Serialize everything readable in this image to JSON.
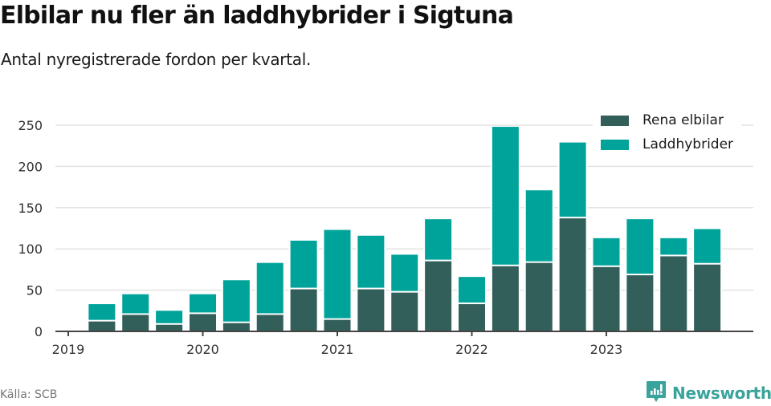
{
  "header": {
    "title": "Elbilar nu fler än laddhybrider i Sigtuna",
    "subtitle": "Antal nyregistrerade fordon per kvartal."
  },
  "legend": {
    "items": [
      {
        "label": "Rena elbilar",
        "color": "#335f5b"
      },
      {
        "label": "Laddhybrider",
        "color": "#00a39a"
      }
    ]
  },
  "footer": {
    "source": "Källa: SCB",
    "brand": "Newsworthy",
    "brand_icon": "bar-chart-speech-bubble-icon"
  },
  "colors": {
    "elbilar": "#335f5b",
    "laddhybrider": "#00a39a",
    "grid": "#e3e3e3",
    "axis": "#444444",
    "brand": "#3aa39b"
  },
  "chart_data": {
    "type": "bar",
    "stacked": true,
    "title": "Elbilar nu fler än laddhybrider i Sigtuna",
    "subtitle": "Antal nyregistrerade fordon per kvartal.",
    "xlabel": "",
    "ylabel": "",
    "ylim": [
      0,
      260
    ],
    "yticks": [
      0,
      50,
      100,
      150,
      200,
      250
    ],
    "xtick_labels": [
      "2019",
      "2020",
      "2021",
      "2022",
      "2023"
    ],
    "grid": true,
    "legend_position": "top-right",
    "categories": [
      "2019 Q2",
      "2019 Q3",
      "2019 Q4",
      "2020 Q1",
      "2020 Q2",
      "2020 Q3",
      "2020 Q4",
      "2021 Q1",
      "2021 Q2",
      "2021 Q3",
      "2021 Q4",
      "2022 Q1",
      "2022 Q2",
      "2022 Q3",
      "2022 Q4",
      "2023 Q1",
      "2023 Q2",
      "2023 Q3",
      "2023 Q4"
    ],
    "series": [
      {
        "name": "Rena elbilar",
        "color": "#335f5b",
        "values": [
          12,
          20,
          8,
          21,
          10,
          20,
          51,
          14,
          51,
          47,
          85,
          33,
          79,
          83,
          137,
          78,
          68,
          91,
          81
        ]
      },
      {
        "name": "Laddhybrider",
        "color": "#00a39a",
        "values": [
          21,
          25,
          17,
          24,
          52,
          63,
          59,
          109,
          65,
          46,
          51,
          33,
          169,
          88,
          92,
          35,
          68,
          22,
          43
        ]
      }
    ],
    "totals": [
      33,
      45,
      25,
      45,
      62,
      83,
      110,
      123,
      116,
      93,
      136,
      66,
      248,
      171,
      229,
      113,
      136,
      113,
      124
    ]
  }
}
